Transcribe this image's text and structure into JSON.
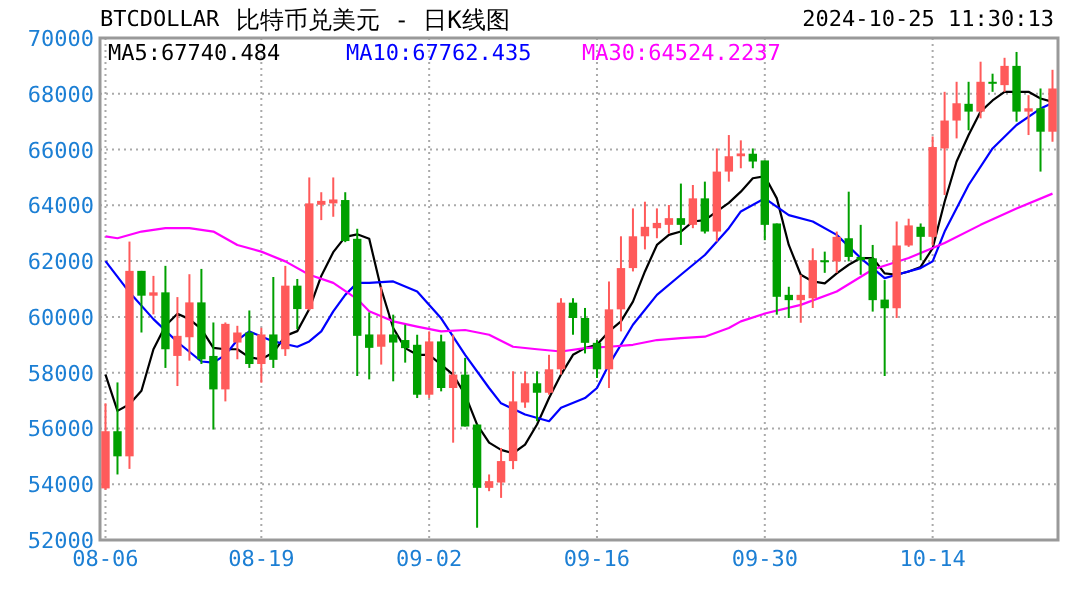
{
  "chart_data": {
    "type": "candlestick",
    "title": "BTCDOLLAR",
    "subtitle": "比特币兑美元 - 日K线图",
    "annotations": [
      "2024-10-25 11:30:13"
    ],
    "x": [
      "2024-08-06",
      "2024-08-07",
      "2024-08-08",
      "2024-08-09",
      "2024-08-10",
      "2024-08-11",
      "2024-08-12",
      "2024-08-13",
      "2024-08-14",
      "2024-08-15",
      "2024-08-16",
      "2024-08-17",
      "2024-08-18",
      "2024-08-19",
      "2024-08-20",
      "2024-08-21",
      "2024-08-22",
      "2024-08-23",
      "2024-08-24",
      "2024-08-25",
      "2024-08-26",
      "2024-08-27",
      "2024-08-28",
      "2024-08-29",
      "2024-08-30",
      "2024-08-31",
      "2024-09-01",
      "2024-09-02",
      "2024-09-03",
      "2024-09-04",
      "2024-09-05",
      "2024-09-06",
      "2024-09-07",
      "2024-09-08",
      "2024-09-09",
      "2024-09-10",
      "2024-09-11",
      "2024-09-12",
      "2024-09-13",
      "2024-09-14",
      "2024-09-15",
      "2024-09-16",
      "2024-09-17",
      "2024-09-18",
      "2024-09-19",
      "2024-09-20",
      "2024-09-21",
      "2024-09-22",
      "2024-09-23",
      "2024-09-24",
      "2024-09-25",
      "2024-09-26",
      "2024-09-27",
      "2024-09-28",
      "2024-09-29",
      "2024-09-30",
      "2024-10-01",
      "2024-10-02",
      "2024-10-03",
      "2024-10-04",
      "2024-10-05",
      "2024-10-06",
      "2024-10-07",
      "2024-10-08",
      "2024-10-09",
      "2024-10-10",
      "2024-10-11",
      "2024-10-12",
      "2024-10-13",
      "2024-10-14",
      "2024-10-15",
      "2024-10-16",
      "2024-10-17",
      "2024-10-18",
      "2024-10-19",
      "2024-10-20",
      "2024-10-21",
      "2024-10-22",
      "2024-10-23",
      "2024-10-24"
    ],
    "ohlc": [
      [
        53850,
        56900,
        53800,
        55900
      ],
      [
        55900,
        57650,
        54350,
        55000
      ],
      [
        55000,
        62700,
        54550,
        61650
      ],
      [
        61650,
        61650,
        59440,
        60760
      ],
      [
        60760,
        61470,
        60090,
        60880
      ],
      [
        60880,
        61830,
        58170,
        58840
      ],
      [
        58600,
        60710,
        57520,
        59320
      ],
      [
        59270,
        61530,
        58430,
        60520
      ],
      [
        60520,
        61720,
        58310,
        58480
      ],
      [
        58600,
        59800,
        55960,
        57400
      ],
      [
        57400,
        59800,
        56970,
        59750
      ],
      [
        59080,
        59680,
        58480,
        59440
      ],
      [
        59440,
        60230,
        58170,
        58310
      ],
      [
        58310,
        59610,
        57640,
        59370
      ],
      [
        59370,
        61430,
        58170,
        58460
      ],
      [
        58840,
        61830,
        58600,
        61120
      ],
      [
        61120,
        61360,
        59560,
        60280
      ],
      [
        60280,
        65000,
        60230,
        64070
      ],
      [
        64020,
        64470,
        63470,
        64160
      ],
      [
        64070,
        65000,
        63590,
        64210
      ],
      [
        64190,
        64470,
        62680,
        62720
      ],
      [
        62800,
        63160,
        57880,
        59320
      ],
      [
        59370,
        60160,
        57760,
        58890
      ],
      [
        58930,
        61080,
        58290,
        59370
      ],
      [
        59370,
        60080,
        57690,
        59080
      ],
      [
        59170,
        59720,
        58360,
        58880
      ],
      [
        59000,
        59360,
        57090,
        57210
      ],
      [
        57210,
        59480,
        57090,
        59120
      ],
      [
        59120,
        59360,
        57330,
        57450
      ],
      [
        57450,
        59360,
        55490,
        57930
      ],
      [
        57930,
        58530,
        56070,
        56070
      ],
      [
        56140,
        56140,
        52440,
        53870
      ],
      [
        53870,
        54350,
        53750,
        54110
      ],
      [
        54060,
        55300,
        53510,
        54830
      ],
      [
        54830,
        58050,
        54540,
        56970
      ],
      [
        56930,
        58050,
        56740,
        57620
      ],
      [
        57620,
        58050,
        56260,
        57280
      ],
      [
        57280,
        58640,
        57210,
        58120
      ],
      [
        58120,
        60670,
        57930,
        60510
      ],
      [
        60510,
        60670,
        59360,
        59960
      ],
      [
        59960,
        60320,
        58690,
        59070
      ],
      [
        59070,
        59170,
        57810,
        58120
      ],
      [
        58120,
        61270,
        57450,
        60270
      ],
      [
        60270,
        62890,
        59480,
        61750
      ],
      [
        61750,
        63890,
        61630,
        62890
      ],
      [
        62890,
        64130,
        62420,
        63230
      ],
      [
        63180,
        63890,
        62820,
        63370
      ],
      [
        63300,
        64010,
        62990,
        63540
      ],
      [
        63540,
        64780,
        62580,
        63300
      ],
      [
        63300,
        64730,
        63180,
        64250
      ],
      [
        64250,
        64850,
        62990,
        63060
      ],
      [
        63060,
        66040,
        62700,
        65210
      ],
      [
        65210,
        66520,
        64850,
        65760
      ],
      [
        65760,
        66330,
        65330,
        65860
      ],
      [
        65850,
        66040,
        65330,
        65570
      ],
      [
        65610,
        65610,
        62750,
        63300
      ],
      [
        63350,
        63350,
        60080,
        60720
      ],
      [
        60790,
        61080,
        59960,
        60600
      ],
      [
        60600,
        61510,
        59790,
        60790
      ],
      [
        60670,
        62460,
        60320,
        62030
      ],
      [
        62030,
        62340,
        61580,
        61990
      ],
      [
        61990,
        63060,
        61580,
        62870
      ],
      [
        62820,
        64490,
        61990,
        62150
      ],
      [
        62150,
        63300,
        61510,
        62030
      ],
      [
        62100,
        62580,
        60190,
        60600
      ],
      [
        60620,
        61320,
        57880,
        60310
      ],
      [
        60310,
        63420,
        59960,
        62560
      ],
      [
        62560,
        63520,
        62510,
        63280
      ],
      [
        63230,
        63350,
        62030,
        62870
      ],
      [
        62870,
        66470,
        62560,
        66090
      ],
      [
        66040,
        68070,
        64370,
        67040
      ],
      [
        67040,
        68430,
        66400,
        67660
      ],
      [
        67640,
        68430,
        66690,
        67360
      ],
      [
        67360,
        69150,
        67120,
        68430
      ],
      [
        68430,
        68720,
        68070,
        68380
      ],
      [
        68310,
        69290,
        68070,
        69000
      ],
      [
        69000,
        69500,
        67000,
        67360
      ],
      [
        67360,
        67950,
        66520,
        67480
      ],
      [
        67480,
        68190,
        65210,
        66640
      ],
      [
        66640,
        68860,
        66280,
        68190
      ]
    ],
    "series": [
      {
        "type": "line",
        "name": "MA5:67740.484",
        "color": "#000000",
        "values": [
          57930,
          56630,
          56870,
          57350,
          58840,
          59680,
          60110,
          59920,
          59560,
          58890,
          58840,
          58840,
          58550,
          58480,
          58720,
          59320,
          59490,
          60280,
          61470,
          62320,
          62870,
          62960,
          62800,
          61000,
          59600,
          58880,
          58640,
          58640,
          58290,
          57930,
          57210,
          56140,
          55490,
          55230,
          55110,
          55420,
          56140,
          57090,
          57930,
          58640,
          58880,
          59000,
          59480,
          59840,
          60550,
          61630,
          62580,
          62940,
          63060,
          63420,
          63470,
          63780,
          64090,
          64490,
          64970,
          65040,
          64250,
          62580,
          61510,
          61270,
          61200,
          61560,
          61870,
          62110,
          62110,
          61560,
          61510,
          61630,
          61790,
          62460,
          64130,
          65570,
          66520,
          67360,
          67760,
          68070,
          68070,
          68070,
          67830,
          67710
        ]
      },
      {
        "type": "line",
        "name": "MA10:67762.435",
        "color": "#0000ff",
        "x": [
          "2024-08-06",
          "2024-08-08",
          "2024-08-10",
          "2024-08-12",
          "2024-08-14",
          "2024-08-15",
          "2024-08-16",
          "2024-08-17",
          "2024-08-18",
          "2024-08-20",
          "2024-08-22",
          "2024-08-23",
          "2024-08-24",
          "2024-08-25",
          "2024-08-26",
          "2024-08-27",
          "2024-08-28",
          "2024-08-30",
          "2024-09-01",
          "2024-09-03",
          "2024-09-05",
          "2024-09-07",
          "2024-09-08",
          "2024-09-10",
          "2024-09-12",
          "2024-09-13",
          "2024-09-15",
          "2024-09-16",
          "2024-09-17",
          "2024-09-19",
          "2024-09-21",
          "2024-09-23",
          "2024-09-25",
          "2024-09-27",
          "2024-09-28",
          "2024-09-30",
          "2024-10-02",
          "2024-10-04",
          "2024-10-06",
          "2024-10-08",
          "2024-10-10",
          "2024-10-11",
          "2024-10-13",
          "2024-10-14",
          "2024-10-15",
          "2024-10-17",
          "2024-10-19",
          "2024-10-21",
          "2024-10-23",
          "2024-10-24"
        ],
        "values": [
          62000,
          60880,
          59920,
          59100,
          58400,
          58360,
          58640,
          59170,
          59480,
          59120,
          58930,
          59120,
          59480,
          60200,
          60790,
          61220,
          61220,
          61270,
          60910,
          59950,
          58640,
          57450,
          56900,
          56500,
          56260,
          56740,
          57090,
          57450,
          58290,
          59720,
          60790,
          61510,
          62220,
          63180,
          63780,
          64250,
          63650,
          63420,
          62940,
          62110,
          61390,
          61510,
          61750,
          61990,
          63060,
          64730,
          66040,
          66880,
          67470,
          67670
        ]
      },
      {
        "type": "line",
        "name": "MA30:64524.2237",
        "color": "#ff00ff",
        "x": [
          "2024-08-06",
          "2024-08-07",
          "2024-08-09",
          "2024-08-11",
          "2024-08-13",
          "2024-08-15",
          "2024-08-17",
          "2024-08-19",
          "2024-08-21",
          "2024-08-23",
          "2024-08-25",
          "2024-08-27",
          "2024-08-28",
          "2024-08-30",
          "2024-09-01",
          "2024-09-03",
          "2024-09-05",
          "2024-09-07",
          "2024-09-09",
          "2024-09-11",
          "2024-09-13",
          "2024-09-15",
          "2024-09-17",
          "2024-09-19",
          "2024-09-21",
          "2024-09-23",
          "2024-09-25",
          "2024-09-27",
          "2024-09-28",
          "2024-09-30",
          "2024-10-03",
          "2024-10-06",
          "2024-10-09",
          "2024-10-12",
          "2024-10-15",
          "2024-10-18",
          "2024-10-21",
          "2024-10-24"
        ],
        "values": [
          62890,
          62820,
          63060,
          63180,
          63180,
          63060,
          62580,
          62340,
          61990,
          61510,
          61220,
          60640,
          60200,
          59840,
          59650,
          59480,
          59530,
          59360,
          58930,
          58840,
          58760,
          58880,
          58930,
          59000,
          59170,
          59240,
          59290,
          59600,
          59840,
          60120,
          60430,
          60910,
          61700,
          62110,
          62650,
          63300,
          63890,
          64420
        ]
      }
    ],
    "xlim": [
      "2024-08-05T13:00",
      "2024-10-24T11:00"
    ],
    "xticks": [
      {
        "value": "2024-08-06",
        "label": "08-06"
      },
      {
        "value": "2024-08-19",
        "label": "08-19"
      },
      {
        "value": "2024-09-02",
        "label": "09-02"
      },
      {
        "value": "2024-09-16",
        "label": "09-16"
      },
      {
        "value": "2024-09-30",
        "label": "09-30"
      },
      {
        "value": "2024-10-14",
        "label": "10-14"
      }
    ],
    "ylim": [
      52000,
      70000
    ],
    "yticks": [
      52000,
      54000,
      56000,
      58000,
      60000,
      62000,
      64000,
      66000,
      68000,
      70000
    ],
    "grid": true,
    "legend": "top"
  }
}
